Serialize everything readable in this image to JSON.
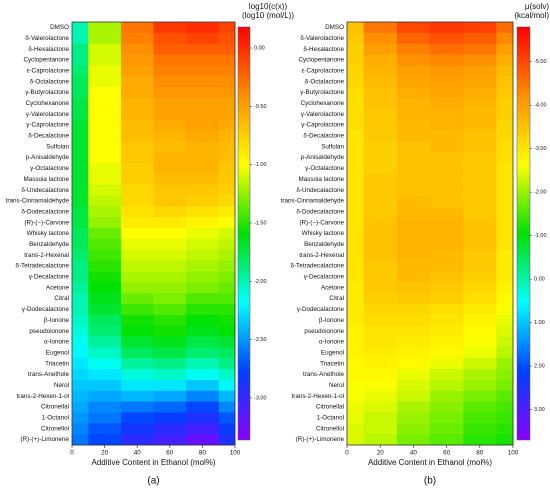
{
  "chart_data": [
    {
      "type": "heatmap",
      "panel_label": "(a)",
      "x_label": "Additive Content in Ethanol (mol%)",
      "colorbar_label": [
        "log10(c(x))",
        "(log10 (mol/L))"
      ],
      "x": [
        0,
        20,
        40,
        60,
        80,
        100
      ],
      "xlim": [
        0,
        100
      ],
      "xticks": [
        0,
        20,
        40,
        60,
        80,
        100
      ],
      "categories": [
        "DMSO",
        "δ-Valerolactone",
        "δ-Hexalactone",
        "Cyclopentanone",
        "ε-Caprolactone",
        "δ-Octalactone",
        "γ-Butyrolactone",
        "Cyclohexanone",
        "γ-Valerolactone",
        "γ-Caprolactone",
        "δ-Decalactone",
        "Sulfolan",
        "p-Anisaldehyde",
        "γ-Octalactone",
        "Massoia lactone",
        "δ-Undecalactone",
        "trans-Cinnamaldehyde",
        "δ-Dodecalactone",
        "(R)-(−)-Carvone",
        "Whisky lactone",
        "Benzaldehyde",
        "trans-2-Hexenal",
        "δ-Tetradecalactone",
        "γ-Decalactone",
        "Acetone",
        "Citral",
        "γ-Dodecalactone",
        "β-Ionone",
        "pseudoionone",
        "α-Ionone",
        "Eugenol",
        "Triacetin",
        "trans-Anethole",
        "Nerol",
        "trans-2-Hexen-1-ol",
        "Citronellal",
        "1-Octanol",
        "Citronellol",
        "(R)-(+)-Limonene"
      ],
      "values": [
        [
          -2.0,
          -1.2,
          -0.3,
          -0.05,
          0.0,
          -0.1
        ],
        [
          -2.0,
          -1.2,
          -0.35,
          -0.15,
          -0.1,
          -0.15
        ],
        [
          -1.9,
          -1.1,
          -0.4,
          -0.2,
          -0.2,
          -0.2
        ],
        [
          -1.9,
          -1.1,
          -0.45,
          -0.3,
          -0.3,
          -0.3
        ],
        [
          -1.85,
          -1.05,
          -0.5,
          -0.35,
          -0.35,
          -0.35
        ],
        [
          -1.8,
          -1.05,
          -0.55,
          -0.4,
          -0.4,
          -0.4
        ],
        [
          -1.8,
          -1.0,
          -0.55,
          -0.45,
          -0.45,
          -0.45
        ],
        [
          -1.75,
          -1.0,
          -0.6,
          -0.5,
          -0.5,
          -0.5
        ],
        [
          -1.75,
          -1.0,
          -0.6,
          -0.5,
          -0.5,
          -0.5
        ],
        [
          -1.7,
          -1.0,
          -0.65,
          -0.55,
          -0.5,
          -0.55
        ],
        [
          -1.7,
          -1.0,
          -0.65,
          -0.6,
          -0.55,
          -0.6
        ],
        [
          -1.7,
          -1.0,
          -0.7,
          -0.65,
          -0.6,
          -0.65
        ],
        [
          -1.7,
          -1.0,
          -0.7,
          -0.6,
          -0.6,
          -0.65
        ],
        [
          -1.7,
          -1.05,
          -0.75,
          -0.6,
          -0.6,
          -0.7
        ],
        [
          -1.7,
          -1.05,
          -0.75,
          -0.65,
          -0.65,
          -0.7
        ],
        [
          -1.7,
          -1.1,
          -0.8,
          -0.7,
          -0.7,
          -0.75
        ],
        [
          -1.7,
          -1.15,
          -0.8,
          -0.7,
          -0.75,
          -0.8
        ],
        [
          -1.75,
          -1.2,
          -0.85,
          -0.8,
          -0.85,
          -0.9
        ],
        [
          -1.75,
          -1.25,
          -0.9,
          -0.9,
          -0.95,
          -1.0
        ],
        [
          -1.8,
          -1.35,
          -1.0,
          -1.0,
          -1.05,
          -1.1
        ],
        [
          -1.8,
          -1.4,
          -1.05,
          -1.05,
          -1.1,
          -1.15
        ],
        [
          -1.85,
          -1.45,
          -1.1,
          -1.1,
          -1.15,
          -1.2
        ],
        [
          -1.9,
          -1.5,
          -1.15,
          -1.15,
          -1.2,
          -1.25
        ],
        [
          -1.9,
          -1.55,
          -1.2,
          -1.2,
          -1.25,
          -1.3
        ],
        [
          -1.95,
          -1.6,
          -1.25,
          -1.25,
          -1.3,
          -1.35
        ],
        [
          -2.0,
          -1.65,
          -1.35,
          -1.3,
          -1.4,
          -1.4
        ],
        [
          -2.0,
          -1.7,
          -1.45,
          -1.4,
          -1.5,
          -1.5
        ],
        [
          -2.05,
          -1.8,
          -1.55,
          -1.5,
          -1.6,
          -1.55
        ],
        [
          -2.1,
          -1.85,
          -1.6,
          -1.55,
          -1.65,
          -1.6
        ],
        [
          -2.15,
          -1.95,
          -1.7,
          -1.65,
          -1.75,
          -1.7
        ],
        [
          -2.2,
          -2.05,
          -1.8,
          -1.75,
          -1.85,
          -1.8
        ],
        [
          -2.25,
          -2.15,
          -1.95,
          -1.9,
          -2.0,
          -1.9
        ],
        [
          -2.3,
          -2.25,
          -2.1,
          -2.05,
          -2.15,
          -2.05
        ],
        [
          -2.35,
          -2.35,
          -2.25,
          -2.25,
          -2.35,
          -2.2
        ],
        [
          -2.4,
          -2.45,
          -2.4,
          -2.45,
          -2.55,
          -2.4
        ],
        [
          -2.45,
          -2.55,
          -2.6,
          -2.65,
          -2.75,
          -2.55
        ],
        [
          -2.5,
          -2.6,
          -2.75,
          -2.8,
          -2.9,
          -2.7
        ],
        [
          -2.55,
          -2.7,
          -2.85,
          -2.95,
          -3.05,
          -2.8
        ],
        [
          -2.6,
          -2.75,
          -2.95,
          -3.05,
          -3.2,
          -2.9
        ]
      ],
      "zlim": [
        -3.36,
        0.18
      ],
      "zticks": [
        {
          "value": 0,
          "label": "0.00"
        },
        {
          "value": -0.5,
          "label": "-0.50"
        },
        {
          "value": -1,
          "label": "-1.00"
        },
        {
          "value": -1.5,
          "label": "-1.50"
        },
        {
          "value": -2,
          "label": "-2.00"
        },
        {
          "value": -2.5,
          "label": "-2.50"
        },
        {
          "value": -3,
          "label": "-3.00"
        }
      ],
      "colorscale": [
        "#8a00ff",
        "#0040ff",
        "#00ffff",
        "#00e000",
        "#ffff00",
        "#ff9000",
        "#ff0000"
      ]
    },
    {
      "type": "heatmap",
      "panel_label": "(b)",
      "x_label": "Additive Content in Ethanol (mol%)",
      "colorbar_label": [
        "μ(solv)",
        "(kcal/mol)"
      ],
      "x": [
        0,
        20,
        40,
        60,
        80,
        100
      ],
      "xlim": [
        0,
        100
      ],
      "xticks": [
        0,
        20,
        40,
        60,
        80,
        100
      ],
      "categories": [
        "DMSO",
        "δ-Valerolactone",
        "δ-Hexalactone",
        "Cyclopentanone",
        "ε-Caprolactone",
        "δ-Octalactone",
        "γ-Butyrolactone",
        "Cyclohexanone",
        "γ-Valerolactone",
        "γ-Caprolactone",
        "δ-Decalactone",
        "Sulfolan",
        "p-Anisaldehyde",
        "γ-Octalactone",
        "Massoia lactone",
        "δ-Undecalactone",
        "trans-Cinnamaldehyde",
        "δ-Dodecalactone",
        "(R)-(−)-Carvone",
        "Whisky lactone",
        "Benzaldehyde",
        "trans-2-Hexenal",
        "δ-Tetradecalactone",
        "γ-Decalactone",
        "Acetone",
        "Citral",
        "γ-Dodecalactone",
        "β-Ionone",
        "pseudoionone",
        "α-Ionone",
        "Eugenol",
        "Triacetin",
        "trans-Anethole",
        "Nerol",
        "trans-2-Hexen-1-ol",
        "Citronellal",
        "1-Octanol",
        "Citronellol",
        "(R)-(+)-Limonene"
      ],
      "values": [
        [
          -3.5,
          -4.5,
          -5.0,
          -5.2,
          -5.1,
          -4.6
        ],
        [
          -3.4,
          -4.2,
          -4.7,
          -4.9,
          -4.8,
          -4.3
        ],
        [
          -3.3,
          -4.0,
          -4.4,
          -4.6,
          -4.5,
          -4.0
        ],
        [
          -3.3,
          -3.8,
          -4.2,
          -4.3,
          -4.2,
          -3.8
        ],
        [
          -3.2,
          -3.7,
          -4.0,
          -4.1,
          -4.0,
          -3.6
        ],
        [
          -3.2,
          -3.6,
          -3.9,
          -4.0,
          -3.9,
          -3.5
        ],
        [
          -3.1,
          -3.5,
          -3.8,
          -3.9,
          -3.8,
          -3.4
        ],
        [
          -3.1,
          -3.5,
          -3.7,
          -3.8,
          -3.7,
          -3.3
        ],
        [
          -3.1,
          -3.4,
          -3.7,
          -3.7,
          -3.6,
          -3.3
        ],
        [
          -3.1,
          -3.4,
          -3.6,
          -3.7,
          -3.6,
          -3.2
        ],
        [
          -3.0,
          -3.4,
          -3.6,
          -3.6,
          -3.5,
          -3.2
        ],
        [
          -3.0,
          -3.3,
          -3.5,
          -3.6,
          -3.5,
          -3.1
        ],
        [
          -3.0,
          -3.3,
          -3.5,
          -3.5,
          -3.4,
          -3.1
        ],
        [
          -3.0,
          -3.3,
          -3.5,
          -3.5,
          -3.4,
          -3.0
        ],
        [
          -3.0,
          -3.4,
          -3.5,
          -3.5,
          -3.4,
          -3.0
        ],
        [
          -3.0,
          -3.4,
          -3.5,
          -3.5,
          -3.4,
          -3.0
        ],
        [
          -3.0,
          -3.4,
          -3.6,
          -3.5,
          -3.4,
          -3.0
        ],
        [
          -3.0,
          -3.4,
          -3.6,
          -3.6,
          -3.4,
          -3.0
        ],
        [
          -3.0,
          -3.5,
          -3.7,
          -3.7,
          -3.5,
          -3.0
        ],
        [
          -3.0,
          -3.5,
          -3.7,
          -3.7,
          -3.5,
          -3.0
        ],
        [
          -3.0,
          -3.5,
          -3.7,
          -3.7,
          -3.5,
          -3.0
        ],
        [
          -3.0,
          -3.5,
          -3.7,
          -3.6,
          -3.4,
          -2.9
        ],
        [
          -3.0,
          -3.4,
          -3.6,
          -3.6,
          -3.4,
          -2.9
        ],
        [
          -3.0,
          -3.4,
          -3.6,
          -3.5,
          -3.3,
          -2.9
        ],
        [
          -2.9,
          -3.4,
          -3.5,
          -3.4,
          -3.2,
          -2.8
        ],
        [
          -2.9,
          -3.3,
          -3.4,
          -3.3,
          -3.1,
          -2.7
        ],
        [
          -2.9,
          -3.2,
          -3.2,
          -3.1,
          -2.9,
          -2.6
        ],
        [
          -2.9,
          -3.1,
          -3.1,
          -3.0,
          -2.8,
          -2.5
        ],
        [
          -2.8,
          -3.0,
          -3.0,
          -2.9,
          -2.7,
          -2.4
        ],
        [
          -2.8,
          -3.0,
          -2.9,
          -2.8,
          -2.6,
          -2.3
        ],
        [
          -2.8,
          -2.9,
          -2.8,
          -2.7,
          -2.5,
          -2.2
        ],
        [
          -2.7,
          -2.8,
          -2.7,
          -2.5,
          -2.3,
          -2.0
        ],
        [
          -2.7,
          -2.7,
          -2.5,
          -2.3,
          -2.1,
          -1.9
        ],
        [
          -2.6,
          -2.6,
          -2.4,
          -2.2,
          -2.0,
          -1.8
        ],
        [
          -2.6,
          -2.5,
          -2.3,
          -2.0,
          -1.8,
          -1.6
        ],
        [
          -2.5,
          -2.4,
          -2.1,
          -1.9,
          -1.6,
          -1.5
        ],
        [
          -2.5,
          -2.3,
          -2.0,
          -1.8,
          -1.5,
          -1.4
        ],
        [
          -2.4,
          -2.3,
          -1.9,
          -1.7,
          -1.4,
          -1.3
        ],
        [
          -2.4,
          -2.2,
          -1.8,
          -1.6,
          -1.3,
          -1.2
        ]
      ],
      "zlim": [
        3.7,
        -5.8
      ],
      "zticks": [
        {
          "value": -5,
          "label": "-5.00"
        },
        {
          "value": -4,
          "label": "-4.00"
        },
        {
          "value": -3,
          "label": "-3.00"
        },
        {
          "value": -2,
          "label": "-2.00"
        },
        {
          "value": -1,
          "label": "-1.00"
        },
        {
          "value": 0,
          "label": "0.00"
        },
        {
          "value": 1,
          "label": "1.00"
        },
        {
          "value": 2,
          "label": "2.00"
        },
        {
          "value": 3,
          "label": "3.00"
        }
      ],
      "colorscale": [
        "#8a00ff",
        "#0040ff",
        "#00ffff",
        "#00e000",
        "#ffff00",
        "#ff9000",
        "#ff0000"
      ]
    }
  ]
}
